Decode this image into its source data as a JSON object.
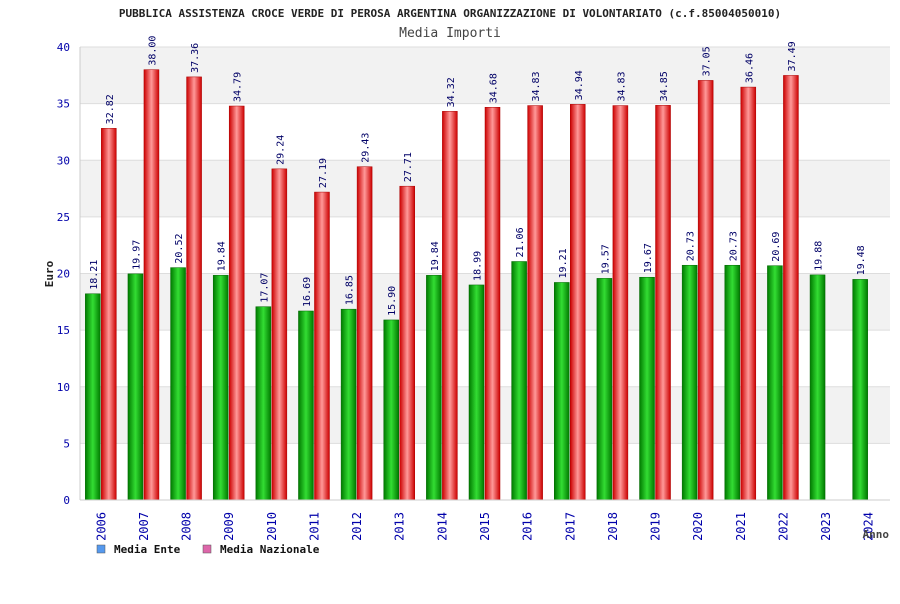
{
  "chart_data": {
    "type": "bar",
    "title": "PUBBLICA ASSISTENZA CROCE VERDE DI PEROSA ARGENTINA ORGANIZZAZIONE DI VOLONTARIATO (c.f.85004050010)",
    "subtitle": "Media Importi",
    "xlabel": "Anno",
    "ylabel": "Euro",
    "ylim": [
      0,
      40
    ],
    "yticks": [
      0,
      5,
      10,
      15,
      20,
      25,
      30,
      35,
      40
    ],
    "grid": true,
    "legend_position": "bottom-left",
    "categories": [
      "2006",
      "2007",
      "2008",
      "2009",
      "2010",
      "2011",
      "2012",
      "2013",
      "2014",
      "2015",
      "2016",
      "2017",
      "2018",
      "2019",
      "2020",
      "2021",
      "2022",
      "2023",
      "2024"
    ],
    "series": [
      {
        "name": "Media Ente",
        "color": "#00aa00",
        "legend_color": "#5599ee",
        "values": [
          18.21,
          19.97,
          20.52,
          19.84,
          17.07,
          16.69,
          16.85,
          15.9,
          19.84,
          18.99,
          21.06,
          19.21,
          19.57,
          19.67,
          20.73,
          20.73,
          20.69,
          19.88,
          19.48
        ],
        "labels": [
          "18.21",
          "19.97",
          "20.52",
          "19.84",
          "17.07",
          "16.69",
          "16.85",
          "15.90",
          "19.84",
          "18.99",
          "21.06",
          "19.21",
          "19.57",
          "19.67",
          "20.73",
          "20.73",
          "20.69",
          "19.88",
          "19.48"
        ]
      },
      {
        "name": "Media Nazionale",
        "color": "#ee1111",
        "legend_color": "#dd66aa",
        "values": [
          32.82,
          38.0,
          37.36,
          34.79,
          29.24,
          27.19,
          29.43,
          27.71,
          34.32,
          34.68,
          34.83,
          34.94,
          34.83,
          34.85,
          37.05,
          36.46,
          37.49,
          null,
          null
        ],
        "labels": [
          "32.82",
          "38.00",
          "37.36",
          "34.79",
          "29.24",
          "27.19",
          "29.43",
          "27.71",
          "34.32",
          "34.68",
          "34.83",
          "34.94",
          "34.83",
          "34.85",
          "37.05",
          "36.46",
          "37.49",
          null,
          null
        ]
      }
    ]
  }
}
